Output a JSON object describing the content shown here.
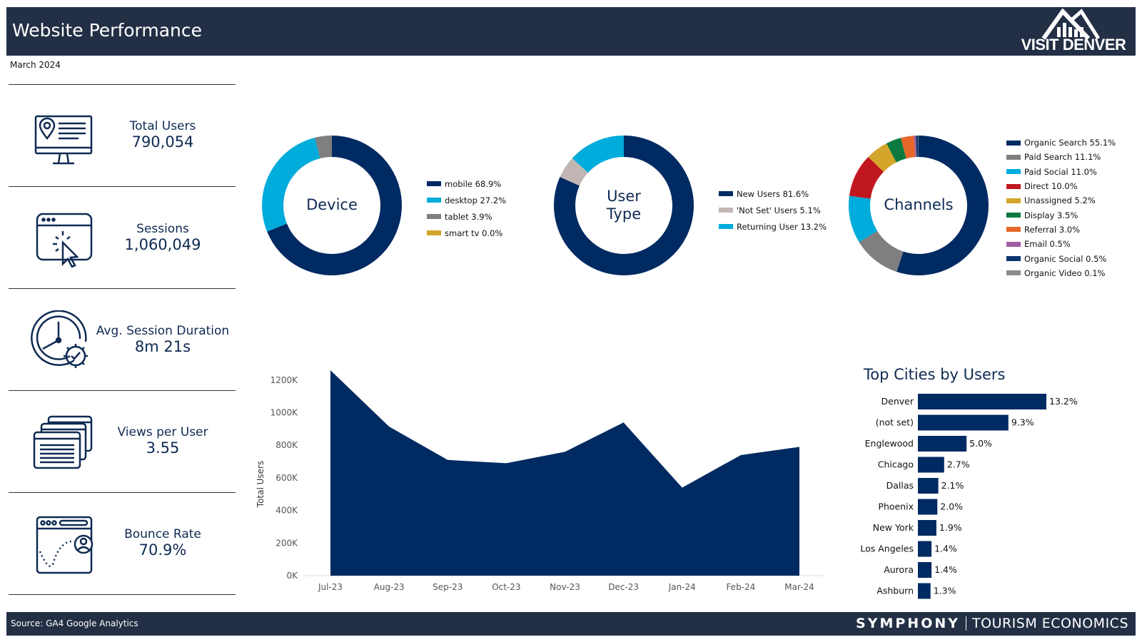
{
  "header": {
    "title": "Website Performance",
    "logo_text": "VISIT DENVER"
  },
  "date": "March 2024",
  "kpis": [
    {
      "label": "Total Users",
      "value": "790,054",
      "icon": "monitor-location-icon"
    },
    {
      "label": "Sessions",
      "value": "1,060,049",
      "icon": "browser-click-icon"
    },
    {
      "label": "Avg. Session Duration",
      "value": "8m 21s",
      "icon": "clock-gear-icon"
    },
    {
      "label": "Views per User",
      "value": "3.55",
      "icon": "stacked-windows-icon"
    },
    {
      "label": "Bounce Rate",
      "value": "70.9%",
      "icon": "browser-user-bounce-icon"
    }
  ],
  "chart_data": [
    {
      "type": "pie",
      "title": "Device",
      "labels": [
        "mobile",
        "desktop",
        "tablet",
        "smart tv"
      ],
      "values": [
        68.9,
        27.2,
        3.9,
        0.0
      ],
      "legend_labels": [
        "mobile 68.9%",
        "desktop 27.2%",
        "tablet 3.9%",
        "smart tv 0.0%"
      ],
      "colors": [
        "#002a62",
        "#00acdc",
        "#7f7f7f",
        "#d4a52b"
      ]
    },
    {
      "type": "pie",
      "title": "User Type",
      "title_lines": [
        "User",
        "Type"
      ],
      "labels": [
        "New Users",
        "'Not Set' Users",
        "Returning User"
      ],
      "values": [
        81.6,
        5.1,
        13.2
      ],
      "legend_labels": [
        "New Users 81.6%",
        "'Not Set' Users 5.1%",
        "Returning User 13.2%"
      ],
      "colors": [
        "#002a62",
        "#c2b6b4",
        "#00acdc"
      ]
    },
    {
      "type": "pie",
      "title": "Channels",
      "labels": [
        "Organic Search",
        "Paid Search",
        "Paid Social",
        "Direct",
        "Unassigned",
        "Display",
        "Referral",
        "Email",
        "Organic Social",
        "Organic Video"
      ],
      "values": [
        55.1,
        11.1,
        11.0,
        10.0,
        5.2,
        3.5,
        3.0,
        0.5,
        0.5,
        0.1
      ],
      "legend_labels": [
        "Organic Search 55.1%",
        "Paid Search 11.1%",
        "Paid Social 11.0%",
        "Direct 10.0%",
        "Unassigned 5.2%",
        "Display 3.5%",
        "Referral 3.0%",
        "Email 0.5%",
        "Organic Social 0.5%",
        "Organic Video 0.1%"
      ],
      "colors": [
        "#002a62",
        "#7f7f7f",
        "#00acdc",
        "#c0171f",
        "#d4a52b",
        "#0b7a3e",
        "#e7672a",
        "#a05ea0",
        "#0a3670",
        "#8c8c8c"
      ]
    },
    {
      "type": "area",
      "categories": [
        "Jul-23",
        "Aug-23",
        "Sep-23",
        "Oct-23",
        "Nov-23",
        "Dec-23",
        "Jan-24",
        "Feb-24",
        "Mar-24"
      ],
      "values": [
        1260000,
        915000,
        710000,
        690000,
        760000,
        940000,
        540000,
        740000,
        790000
      ],
      "ylabel": "Total Users",
      "xlabel": "",
      "ylim": [
        0,
        1300000
      ],
      "yticks": [
        0,
        200000,
        400000,
        600000,
        800000,
        1000000,
        1200000
      ],
      "ytick_labels": [
        "0K",
        "200K",
        "400K",
        "600K",
        "800K",
        "1000K",
        "1200K"
      ],
      "color": "#002a62"
    },
    {
      "type": "bar",
      "orientation": "horizontal",
      "title": "Top Cities by Users",
      "categories": [
        "Denver",
        "(not set)",
        "Englewood",
        "Chicago",
        "Dallas",
        "Phoenix",
        "New York",
        "Los Angeles",
        "Aurora",
        "Ashburn"
      ],
      "values": [
        13.2,
        9.3,
        5.0,
        2.7,
        2.1,
        2.0,
        1.9,
        1.4,
        1.4,
        1.3
      ],
      "value_labels": [
        "13.2%",
        "9.3%",
        "5.0%",
        "2.7%",
        "2.1%",
        "2.0%",
        "1.9%",
        "1.4%",
        "1.4%",
        "1.3%"
      ],
      "color": "#002a62"
    }
  ],
  "footer": {
    "source": "Source: GA4 Google Analytics",
    "brand_left": "SYMPHONY",
    "brand_right": "TOURISM ECONOMICS"
  }
}
